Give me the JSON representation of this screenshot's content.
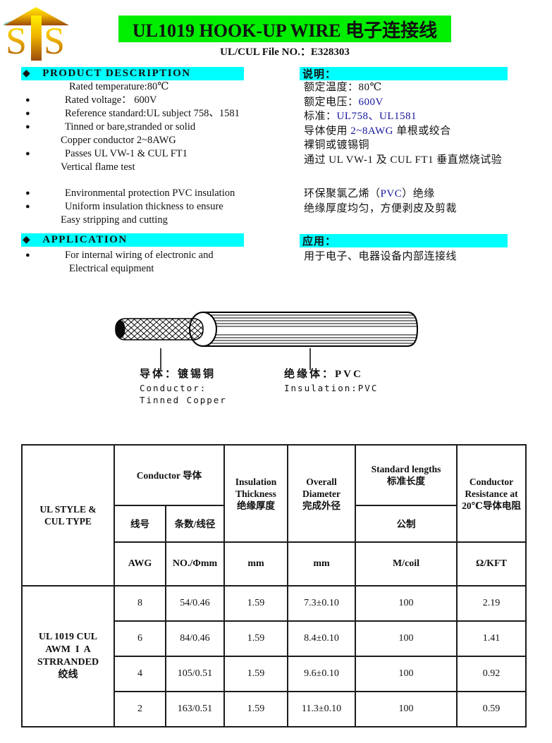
{
  "colors": {
    "title_bg": "#00ee00",
    "section_bg": "#00ffff",
    "accent_navy": "#15159e",
    "logo_gold_top": "#ffee00",
    "logo_gold_bottom": "#9c4a08"
  },
  "header": {
    "logo_letter_left": "S",
    "logo_letter_right": "S",
    "title": "UL1019 HOOK-UP WIRE  电子连接线",
    "subtitle": "UL/CUL File NO.：E328303"
  },
  "product_description": {
    "heading_bullet": "◆",
    "heading": "PRODUCT  DESCRIPTION",
    "items": [
      {
        "bullet": "",
        "indent": 2,
        "segments": [
          {
            "text": "Rated temperature:80℃"
          }
        ]
      },
      {
        "bullet": "●",
        "segments": [
          {
            "text": "Rated voltage： 600V"
          }
        ]
      },
      {
        "bullet": "●",
        "segments": [
          {
            "text": "Reference standard:UL subject 758、1581"
          }
        ]
      },
      {
        "bullet": "●",
        "segments": [
          {
            "text": "Tinned or bare,stranded or solid"
          }
        ]
      },
      {
        "bullet": "",
        "indent": 1,
        "segments": [
          {
            "text": "Copper conductor 2~8AWG"
          }
        ]
      },
      {
        "bullet": "●",
        "segments": [
          {
            "text": "Passes UL VW-1  &  CUL FT1"
          }
        ]
      },
      {
        "bullet": "",
        "indent": 1,
        "segments": [
          {
            "text": "Vertical flame test"
          }
        ]
      },
      {
        "bullet": "●",
        "gap_before": true,
        "segments": [
          {
            "text": "Environmental protection PVC insulation"
          }
        ]
      },
      {
        "bullet": "●",
        "segments": [
          {
            "text": "Uniform insulation thickness to ensure"
          }
        ]
      },
      {
        "bullet": "",
        "indent": 1,
        "segments": [
          {
            "text": "Easy stripping and cutting"
          }
        ]
      }
    ]
  },
  "application": {
    "heading_bullet": "◆",
    "heading": "APPLICATION",
    "items": [
      {
        "bullet": "●",
        "segments": [
          {
            "text": "For internal wiring of electronic and"
          }
        ]
      },
      {
        "bullet": "",
        "indent": 2,
        "segments": [
          {
            "text": "Electrical equipment"
          }
        ]
      }
    ]
  },
  "description_cn": {
    "heading": "说明：",
    "items": [
      {
        "segments": [
          {
            "text": "额定温度：80℃"
          }
        ]
      },
      {
        "segments": [
          {
            "text": "额定电压："
          },
          {
            "text": "600V",
            "navy": true
          }
        ]
      },
      {
        "segments": [
          {
            "text": "标准："
          },
          {
            "text": "UL758、UL1581",
            "navy": true
          }
        ]
      },
      {
        "segments": [
          {
            "text": "导体使用 "
          },
          {
            "text": "2~8AWG",
            "navy": true
          },
          {
            "text": " 单根或绞合"
          }
        ]
      },
      {
        "segments": [
          {
            "text": "裸铜或镀锡铜"
          }
        ]
      },
      {
        "segments": [
          {
            "text": "通过 UL VW-1 及 CUL FT1 垂直燃烧试验"
          }
        ]
      },
      {
        "gap_before": true,
        "segments": [
          {
            "text": "环保聚氯乙烯（"
          },
          {
            "text": "PVC",
            "navy": true
          },
          {
            "text": "）绝缘"
          }
        ]
      },
      {
        "segments": [
          {
            "text": "绝缘厚度均匀，方便剥皮及剪裁"
          }
        ]
      }
    ]
  },
  "application_cn": {
    "heading": "应用：",
    "items": [
      {
        "segments": [
          {
            "text": "用于电子、电器设备内部连接线"
          }
        ]
      }
    ]
  },
  "diagram": {
    "conductor_label_cn": "导体：镀锡铜",
    "conductor_label_en_1": "Conductor:",
    "conductor_label_en_2": "Tinned Copper",
    "insulation_label_cn": "绝缘体：PVC",
    "insulation_label_en": "Insulation:PVC"
  },
  "spec_table": {
    "style_header": "UL STYLE &\nCUL TYPE",
    "conductor_header": "Conductor 导体",
    "insulation_header": "Insulation\nThickness\n绝缘厚度",
    "overall_header": "Overall\nDiameter\n完成外径",
    "lengths_header": "Standard lengths\n标准长度",
    "resistance_header": "Conductor\nResistance at\n20℃导体电阻",
    "wire_no_header": "线号",
    "strand_header": "条数/线径",
    "metric_header": "公制",
    "units": [
      "AWG",
      "NO./Φmm",
      "mm",
      "mm",
      "M/coil",
      "Ω/KFT"
    ],
    "style_label": "UL 1019 CUL\nAWM  I  A\nSTRRANDED\n绞线",
    "rows": [
      [
        "8",
        "54/0.46",
        "1.59",
        "7.3±0.10",
        "100",
        "2.19"
      ],
      [
        "6",
        "84/0.46",
        "1.59",
        "8.4±0.10",
        "100",
        "1.41"
      ],
      [
        "4",
        "105/0.51",
        "1.59",
        "9.6±0.10",
        "100",
        "0.92"
      ],
      [
        "2",
        "163/0.51",
        "1.59",
        "11.3±0.10",
        "100",
        "0.59"
      ]
    ]
  }
}
